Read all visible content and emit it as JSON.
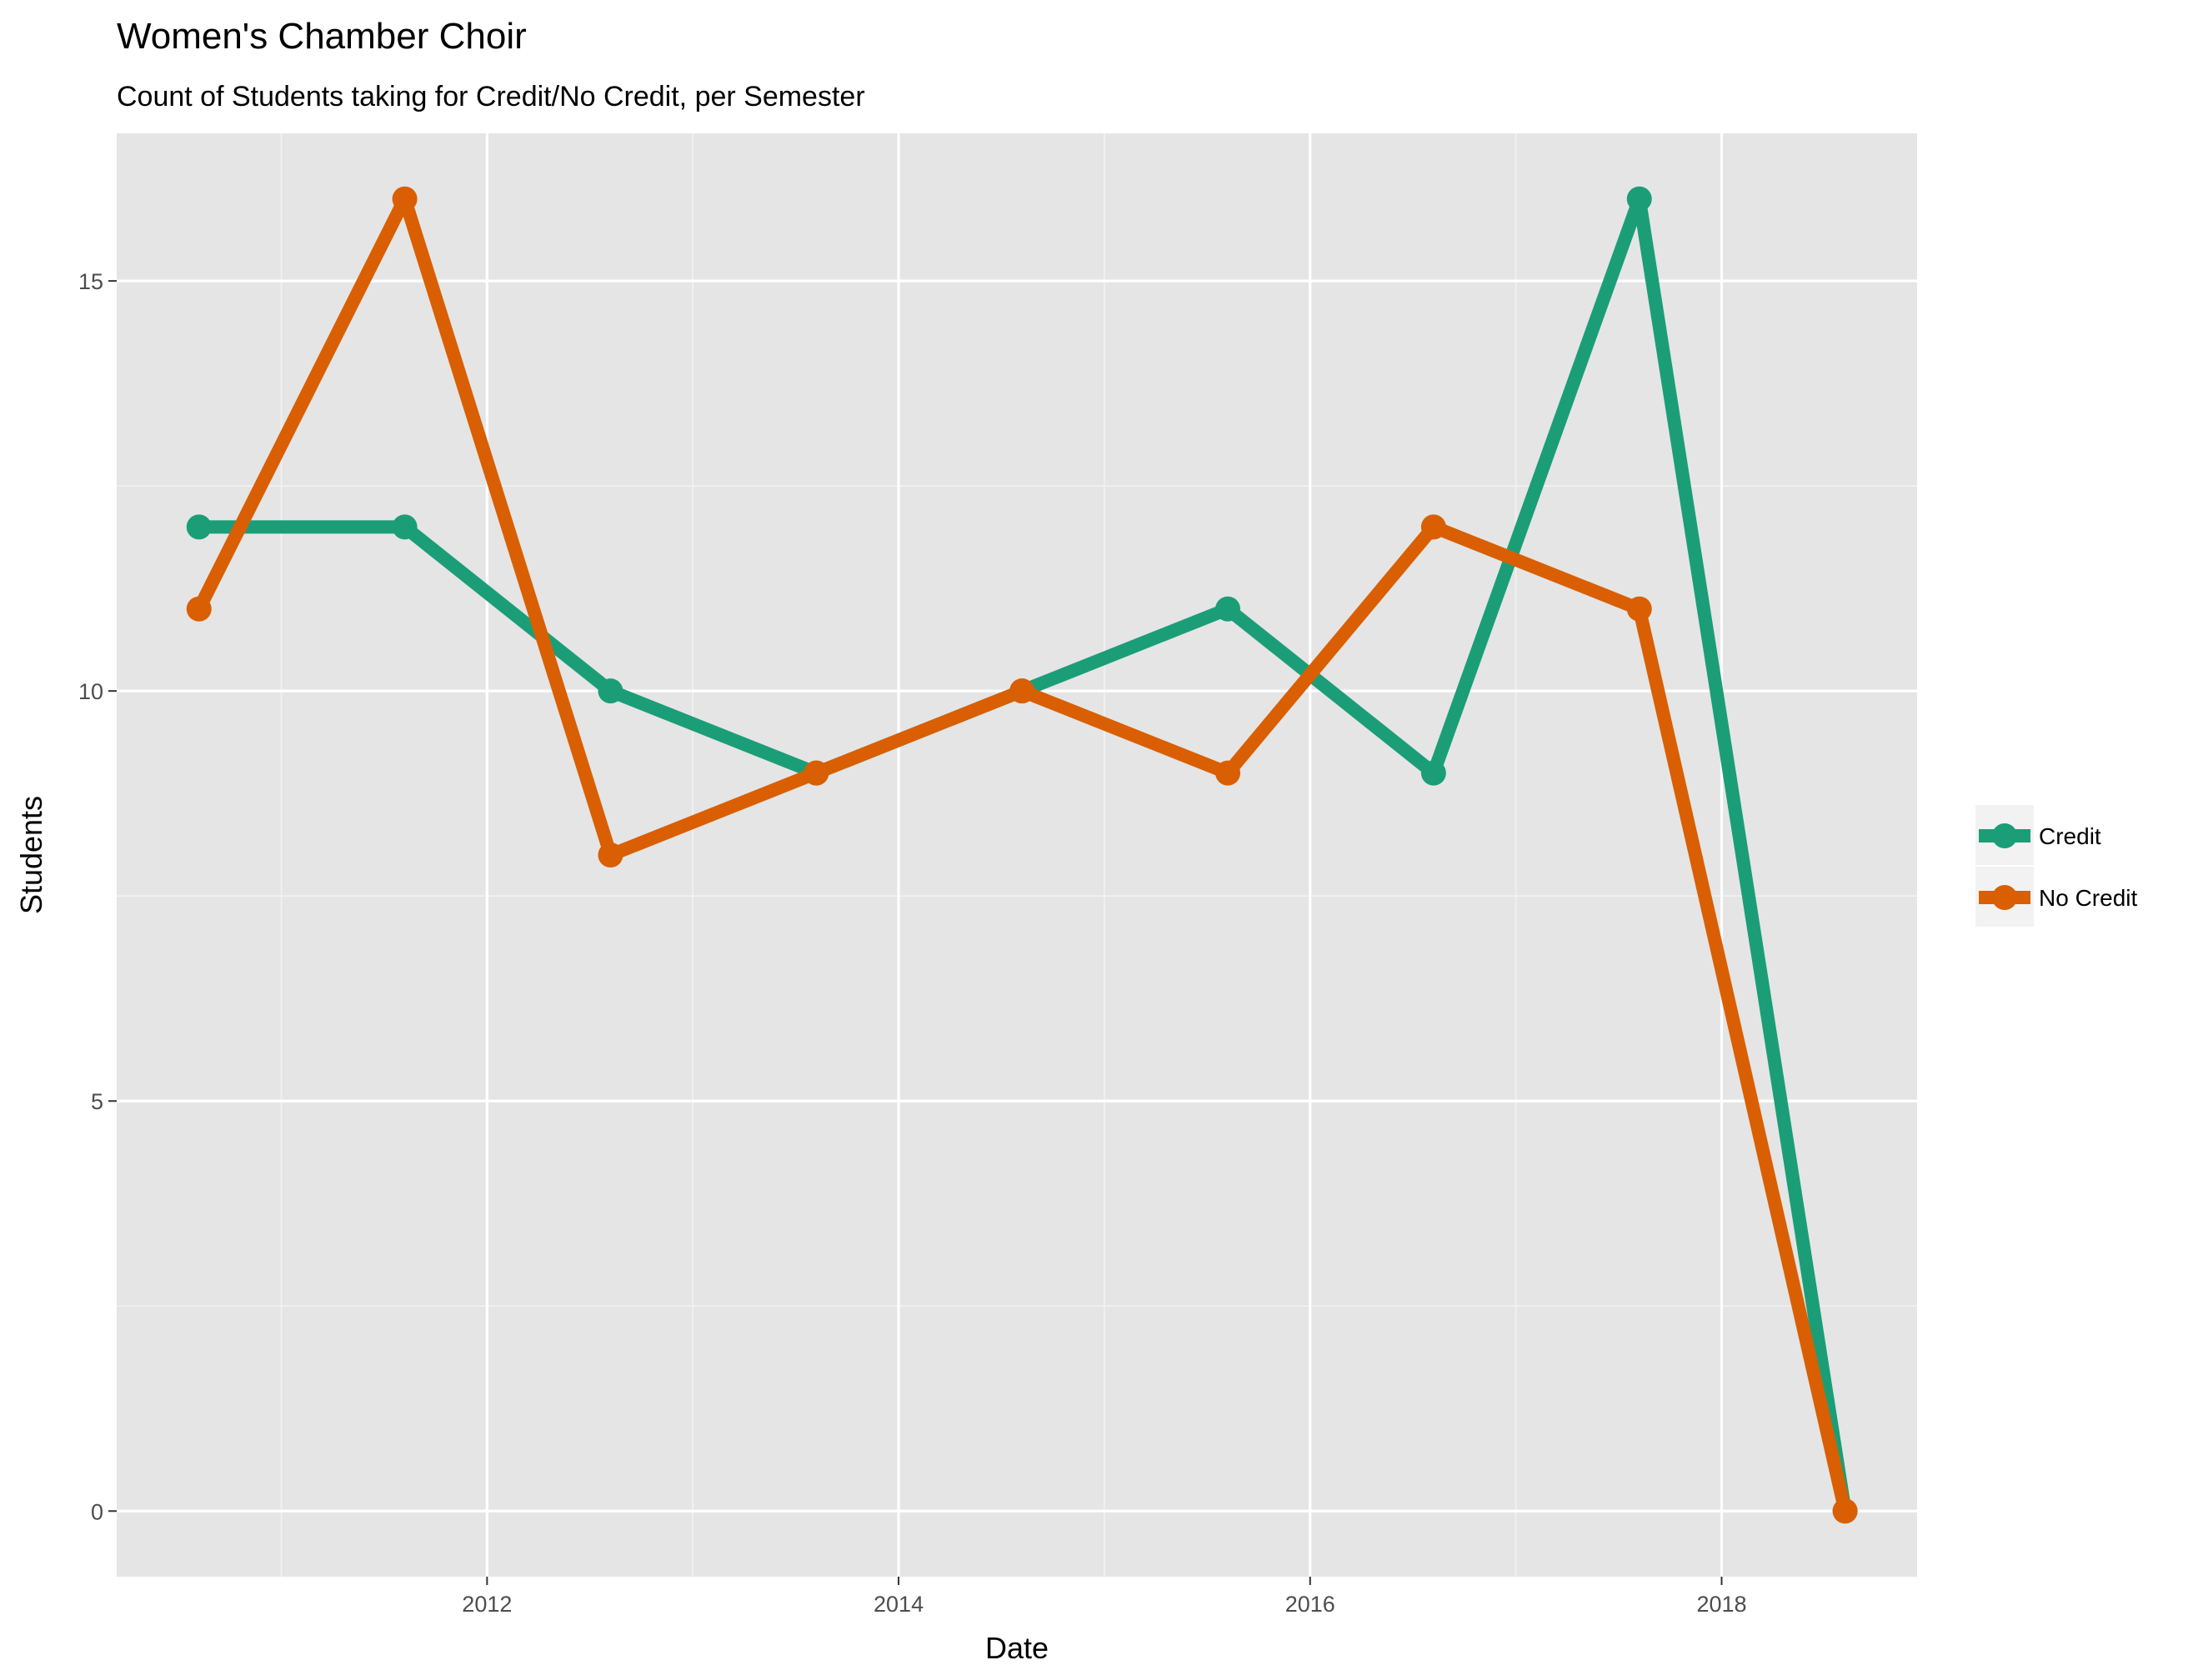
{
  "chart_data": {
    "type": "line",
    "title": "Women's Chamber Choir",
    "subtitle": "Count of Students taking for Credit/No Credit, per Semester",
    "xlabel": "Date",
    "ylabel": "Students",
    "x": [
      "2010-08",
      "2011-08",
      "2012-08",
      "2013-08",
      "2014-08",
      "2015-08",
      "2016-08",
      "2017-08",
      "2018-08"
    ],
    "x_numeric": [
      2010.6,
      2011.6,
      2012.6,
      2013.6,
      2014.6,
      2015.6,
      2016.6,
      2017.6,
      2018.6
    ],
    "xlim": [
      2010.2,
      2018.95
    ],
    "ylim": [
      -0.8,
      16.8
    ],
    "x_ticks": [
      2012,
      2014,
      2016,
      2018
    ],
    "x_tick_labels": [
      "2012",
      "2014",
      "2016",
      "2018"
    ],
    "y_ticks": [
      0,
      5,
      10,
      15
    ],
    "y_tick_labels": [
      "0",
      "5",
      "10",
      "15"
    ],
    "x_minor_gridlines": [
      2011,
      2013,
      2015,
      2017
    ],
    "y_minor_gridlines": [
      2.5,
      7.5,
      12.5
    ],
    "grid": true,
    "legend_position": "right",
    "series": [
      {
        "name": "Credit",
        "color": "#1b9e77",
        "values": [
          12,
          12,
          10,
          9,
          10,
          11,
          9,
          16,
          0
        ]
      },
      {
        "name": "No Credit",
        "color": "#d95f02",
        "values": [
          11,
          16,
          8,
          9,
          10,
          9,
          12,
          11,
          0
        ]
      }
    ]
  }
}
